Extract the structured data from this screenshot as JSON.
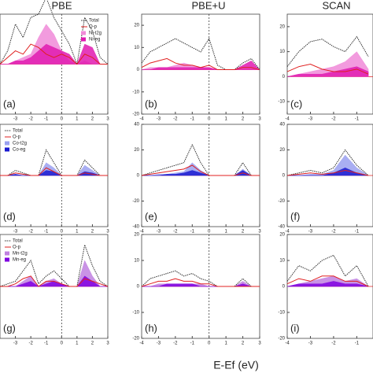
{
  "xlabel": "E-Ef (eV)",
  "chart_data": [
    {
      "type": "line",
      "title": "PBE",
      "label": "(a)",
      "xlim": [
        -4,
        3
      ],
      "ylim": [
        -15,
        15
      ],
      "xticks": [
        -3,
        -2,
        -1,
        0,
        1,
        2,
        3
      ],
      "x": [
        -4,
        -3.5,
        -3,
        -2.5,
        -2,
        -1.5,
        -1,
        -0.5,
        0,
        0.5,
        1,
        1.5,
        2,
        2.5,
        3
      ],
      "series": [
        {
          "name": "Total",
          "color": "#333333",
          "values": [
            0,
            4,
            12,
            8,
            14,
            15,
            20,
            14,
            10,
            6,
            0,
            14,
            10,
            2,
            0
          ]
        },
        {
          "name": "O-p",
          "color": "#e02020",
          "values": [
            0,
            2,
            4,
            3,
            6,
            5,
            3,
            2,
            3,
            2,
            0,
            3,
            2,
            0,
            0
          ]
        },
        {
          "name": "Ni-t2g",
          "color": "#f08ad8",
          "fill": true,
          "values": [
            0,
            0,
            1,
            2,
            3,
            8,
            12,
            9,
            4,
            1,
            0,
            1,
            0,
            0,
            0
          ]
        },
        {
          "name": "Ni-eg",
          "color": "#e01ab0",
          "fill": true,
          "values": [
            0,
            0,
            1,
            1,
            2,
            4,
            6,
            5,
            4,
            3,
            0,
            6,
            5,
            0,
            0
          ]
        }
      ]
    },
    {
      "type": "line",
      "title": "PBE+U",
      "label": "(b)",
      "xlim": [
        -4,
        3
      ],
      "ylim": [
        -20,
        25
      ],
      "xticks": [
        -4,
        -3,
        -2,
        -1,
        0,
        1,
        2,
        3
      ],
      "yticks": [
        -20,
        -10,
        0,
        10,
        20
      ],
      "x": [
        -4,
        -3.5,
        -3,
        -2.5,
        -2,
        -1.5,
        -1,
        -0.5,
        0,
        0.5,
        1,
        1.5,
        2,
        2.5,
        3
      ],
      "series": [
        {
          "color": "#333333",
          "values": [
            3,
            8,
            10,
            12,
            14,
            12,
            10,
            8,
            14,
            2,
            0,
            0,
            3,
            5,
            0
          ]
        },
        {
          "color": "#e02020",
          "values": [
            1,
            3,
            4,
            5,
            3,
            2,
            2,
            1,
            2,
            0,
            0,
            0,
            1,
            1,
            0
          ]
        },
        {
          "color": "#f08ad8",
          "fill": true,
          "values": [
            0,
            1,
            1,
            1,
            2,
            3,
            2,
            1,
            1,
            0,
            0,
            0,
            0,
            0,
            0
          ]
        },
        {
          "color": "#e01ab0",
          "fill": true,
          "values": [
            0,
            0,
            1,
            1,
            1,
            1,
            1,
            1,
            1,
            0,
            0,
            0,
            2,
            4,
            0
          ]
        }
      ]
    },
    {
      "type": "line",
      "title": "SCAN",
      "label": "(c)",
      "xlim": [
        -4,
        -0.3
      ],
      "ylim": [
        -15,
        25
      ],
      "xticks": [
        -4,
        -3,
        -2,
        -1
      ],
      "yticks": [
        -10,
        0,
        10,
        20
      ],
      "x": [
        -4,
        -3.5,
        -3,
        -2.5,
        -2,
        -1.5,
        -1,
        -0.5
      ],
      "series": [
        {
          "color": "#333333",
          "values": [
            4,
            10,
            14,
            15,
            12,
            10,
            16,
            8
          ]
        },
        {
          "color": "#e02020",
          "values": [
            2,
            4,
            5,
            3,
            2,
            2,
            3,
            1
          ]
        },
        {
          "color": "#f08ad8",
          "fill": true,
          "values": [
            0,
            1,
            2,
            3,
            4,
            6,
            10,
            3
          ]
        },
        {
          "color": "#e01ab0",
          "fill": true,
          "values": [
            0,
            1,
            1,
            1,
            2,
            3,
            4,
            2
          ]
        }
      ]
    },
    {
      "type": "line",
      "label": "(d)",
      "xlim": [
        -4,
        3
      ],
      "ylim": [
        -40,
        40
      ],
      "xticks": [
        -3,
        -2,
        -1,
        0,
        1,
        2,
        3
      ],
      "x": [
        -4,
        -3.5,
        -3,
        -2.5,
        -2,
        -1.5,
        -1,
        -0.5,
        0,
        0.5,
        1,
        1.5,
        2,
        2.5,
        3
      ],
      "series": [
        {
          "name": "Total",
          "color": "#333333",
          "values": [
            0,
            0,
            4,
            2,
            0,
            0,
            20,
            10,
            0,
            0,
            0,
            12,
            6,
            0,
            0
          ]
        },
        {
          "name": "O-p",
          "color": "#e02020",
          "values": [
            0,
            0,
            2,
            1,
            0,
            0,
            6,
            3,
            0,
            0,
            0,
            2,
            1,
            0,
            0
          ]
        },
        {
          "name": "Co-t2g",
          "color": "#9aa0f0",
          "fill": true,
          "values": [
            0,
            0,
            1,
            0,
            0,
            0,
            10,
            6,
            0,
            0,
            0,
            8,
            4,
            0,
            0
          ]
        },
        {
          "name": "Co-eg",
          "color": "#1a1ad0",
          "fill": true,
          "values": [
            0,
            0,
            1,
            0,
            0,
            0,
            4,
            3,
            0,
            0,
            0,
            3,
            2,
            0,
            0
          ]
        }
      ]
    },
    {
      "type": "line",
      "label": "(e)",
      "xlim": [
        -4,
        3
      ],
      "ylim": [
        -40,
        40
      ],
      "xticks": [
        -4,
        -3,
        -2,
        -1,
        0,
        1,
        2,
        3
      ],
      "yticks": [
        -40,
        -20,
        0,
        20,
        40
      ],
      "x": [
        -4,
        -3.5,
        -3,
        -2.5,
        -2,
        -1.5,
        -1,
        -0.5,
        0,
        0.5,
        1,
        1.5,
        2,
        2.5,
        3
      ],
      "series": [
        {
          "color": "#333333",
          "values": [
            0,
            2,
            4,
            6,
            8,
            10,
            24,
            10,
            0,
            0,
            0,
            0,
            10,
            0,
            0
          ]
        },
        {
          "color": "#e02020",
          "values": [
            0,
            1,
            2,
            3,
            4,
            5,
            8,
            3,
            0,
            0,
            0,
            0,
            2,
            0,
            0
          ]
        },
        {
          "color": "#9aa0f0",
          "fill": true,
          "values": [
            0,
            0,
            1,
            1,
            2,
            3,
            10,
            4,
            0,
            0,
            0,
            0,
            5,
            0,
            0
          ]
        },
        {
          "color": "#1a1ad0",
          "fill": true,
          "values": [
            0,
            0,
            0,
            1,
            1,
            2,
            4,
            2,
            0,
            0,
            0,
            0,
            4,
            0,
            0
          ]
        }
      ]
    },
    {
      "type": "line",
      "label": "(f)",
      "xlim": [
        -4,
        -0.3
      ],
      "ylim": [
        -40,
        40
      ],
      "xticks": [
        -4,
        -3,
        -2,
        -1
      ],
      "yticks": [
        -40,
        -20,
        0,
        20,
        40
      ],
      "x": [
        -4,
        -3.5,
        -3,
        -2.5,
        -2,
        -1.5,
        -1,
        -0.5
      ],
      "series": [
        {
          "color": "#333333",
          "values": [
            0,
            2,
            4,
            2,
            6,
            20,
            8,
            0
          ]
        },
        {
          "color": "#e02020",
          "values": [
            0,
            1,
            2,
            1,
            2,
            4,
            2,
            0
          ]
        },
        {
          "color": "#9aa0f0",
          "fill": true,
          "values": [
            0,
            0,
            1,
            1,
            4,
            16,
            6,
            0
          ]
        },
        {
          "color": "#1a1ad0",
          "fill": true,
          "values": [
            0,
            0,
            0,
            0,
            2,
            6,
            2,
            0
          ]
        }
      ]
    },
    {
      "type": "line",
      "label": "(g)",
      "xlim": [
        -4,
        3
      ],
      "ylim": [
        -20,
        20
      ],
      "xticks": [
        -3,
        -2,
        -1,
        0,
        1,
        2,
        3
      ],
      "x": [
        -4,
        -3.5,
        -3,
        -2.5,
        -2,
        -1.5,
        -1,
        -0.5,
        0,
        0.5,
        1,
        1.5,
        2,
        2.5,
        3
      ],
      "series": [
        {
          "name": "Total",
          "color": "#333333",
          "values": [
            0,
            1,
            2,
            6,
            10,
            1,
            4,
            6,
            3,
            0,
            0,
            16,
            8,
            2,
            0
          ]
        },
        {
          "name": "O-p",
          "color": "#e02020",
          "values": [
            0,
            0,
            1,
            3,
            4,
            0,
            2,
            2,
            1,
            0,
            0,
            3,
            2,
            1,
            0
          ]
        },
        {
          "name": "Mn-t2g",
          "color": "#c080e0",
          "fill": true,
          "values": [
            0,
            0,
            0,
            2,
            4,
            0,
            2,
            3,
            1,
            0,
            0,
            10,
            4,
            0,
            0
          ]
        },
        {
          "name": "Mn-eg",
          "color": "#8000e0",
          "fill": true,
          "values": [
            0,
            0,
            0,
            1,
            2,
            0,
            1,
            2,
            1,
            0,
            0,
            4,
            2,
            0,
            0
          ]
        }
      ]
    },
    {
      "type": "line",
      "label": "(h)",
      "xlim": [
        -4,
        3
      ],
      "ylim": [
        -20,
        20
      ],
      "xticks": [
        -4,
        -3,
        -2,
        -1,
        0,
        1,
        2,
        3
      ],
      "yticks": [
        -20,
        -10,
        0,
        10,
        20
      ],
      "x": [
        -4,
        -3.5,
        -3,
        -2.5,
        -2,
        -1.5,
        -1,
        -0.5,
        0,
        0.5,
        1,
        1.5,
        2,
        2.5,
        3
      ],
      "series": [
        {
          "color": "#333333",
          "values": [
            0,
            3,
            4,
            5,
            6,
            4,
            5,
            3,
            2,
            0,
            0,
            0,
            3,
            0,
            0
          ]
        },
        {
          "color": "#e02020",
          "values": [
            0,
            1,
            2,
            2,
            3,
            2,
            2,
            1,
            1,
            0,
            0,
            0,
            0,
            0,
            0
          ]
        },
        {
          "color": "#c080e0",
          "fill": true,
          "values": [
            0,
            0,
            1,
            1,
            1,
            1,
            1,
            1,
            0,
            0,
            0,
            0,
            2,
            0,
            0
          ]
        },
        {
          "color": "#8000e0",
          "fill": true,
          "values": [
            0,
            0,
            0,
            1,
            1,
            1,
            1,
            0,
            0,
            0,
            0,
            0,
            1,
            0,
            0
          ]
        }
      ]
    },
    {
      "type": "line",
      "label": "(i)",
      "xlim": [
        -4,
        -0.3
      ],
      "ylim": [
        -20,
        20
      ],
      "xticks": [
        -4,
        -3,
        -2,
        -1
      ],
      "yticks": [
        -20,
        -10,
        0,
        10,
        20
      ],
      "x": [
        -4,
        -3.5,
        -3,
        -2.5,
        -2,
        -1.5,
        -1,
        -0.5
      ],
      "series": [
        {
          "color": "#333333",
          "values": [
            2,
            8,
            6,
            10,
            12,
            4,
            8,
            0
          ]
        },
        {
          "color": "#e02020",
          "values": [
            1,
            3,
            2,
            4,
            4,
            2,
            2,
            0
          ]
        },
        {
          "color": "#c080e0",
          "fill": true,
          "values": [
            0,
            1,
            2,
            3,
            4,
            2,
            3,
            0
          ]
        },
        {
          "color": "#8000e0",
          "fill": true,
          "values": [
            0,
            1,
            1,
            1,
            2,
            1,
            1,
            0
          ]
        }
      ]
    }
  ]
}
